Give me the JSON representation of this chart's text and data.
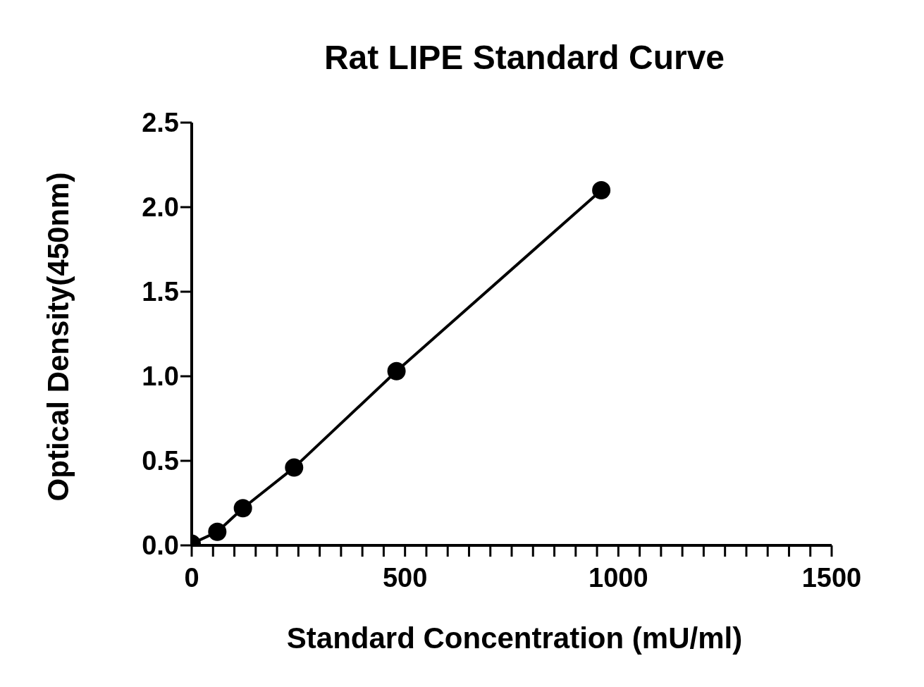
{
  "chart_data": {
    "type": "line",
    "title": "Rat LIPE Standard Curve",
    "xlabel": "Standard Concentration (mU/ml)",
    "ylabel": "Optical Density(450nm)",
    "x": [
      0,
      60,
      120,
      240,
      480,
      960
    ],
    "series": [
      {
        "color": "#000000",
        "values": [
          0.01,
          0.08,
          0.22,
          0.46,
          1.03,
          2.1
        ]
      }
    ],
    "xlim": [
      0,
      1500
    ],
    "xticks": [
      0,
      {
        "value": 50,
        "label": null
      },
      {
        "value": 100,
        "label": null
      },
      {
        "value": 150,
        "label": null
      },
      {
        "value": 200,
        "label": null
      },
      {
        "value": 250,
        "label": null
      },
      {
        "value": 300,
        "label": null
      },
      {
        "value": 350,
        "label": null
      },
      {
        "value": 400,
        "label": null
      },
      {
        "value": 450,
        "label": null
      },
      500,
      {
        "value": 550,
        "label": null
      },
      {
        "value": 600,
        "label": null
      },
      {
        "value": 650,
        "label": null
      },
      {
        "value": 700,
        "label": null
      },
      {
        "value": 750,
        "label": null
      },
      {
        "value": 800,
        "label": null
      },
      {
        "value": 850,
        "label": null
      },
      {
        "value": 900,
        "label": null
      },
      {
        "value": 950,
        "label": null
      },
      1000,
      {
        "value": 1050,
        "label": null
      },
      {
        "value": 1100,
        "label": null
      },
      {
        "value": 1150,
        "label": null
      },
      {
        "value": 1200,
        "label": null
      },
      {
        "value": 1250,
        "label": null
      },
      {
        "value": 1300,
        "label": null
      },
      {
        "value": 1350,
        "label": null
      },
      {
        "value": 1400,
        "label": null
      },
      {
        "value": 1450,
        "label": null
      },
      1500
    ],
    "ylim": [
      0,
      2.5
    ],
    "yticks": [
      {
        "value": 0,
        "label": "0.0"
      },
      {
        "value": 0.5,
        "label": "0.5"
      },
      {
        "value": 1,
        "label": "1.0"
      },
      {
        "value": 1.5,
        "label": "1.5"
      },
      {
        "value": 2,
        "label": "2.0"
      },
      {
        "value": 2.5,
        "label": "2.5"
      }
    ],
    "grid": false,
    "legend": false,
    "marker": "circle",
    "line_style": "solid"
  }
}
